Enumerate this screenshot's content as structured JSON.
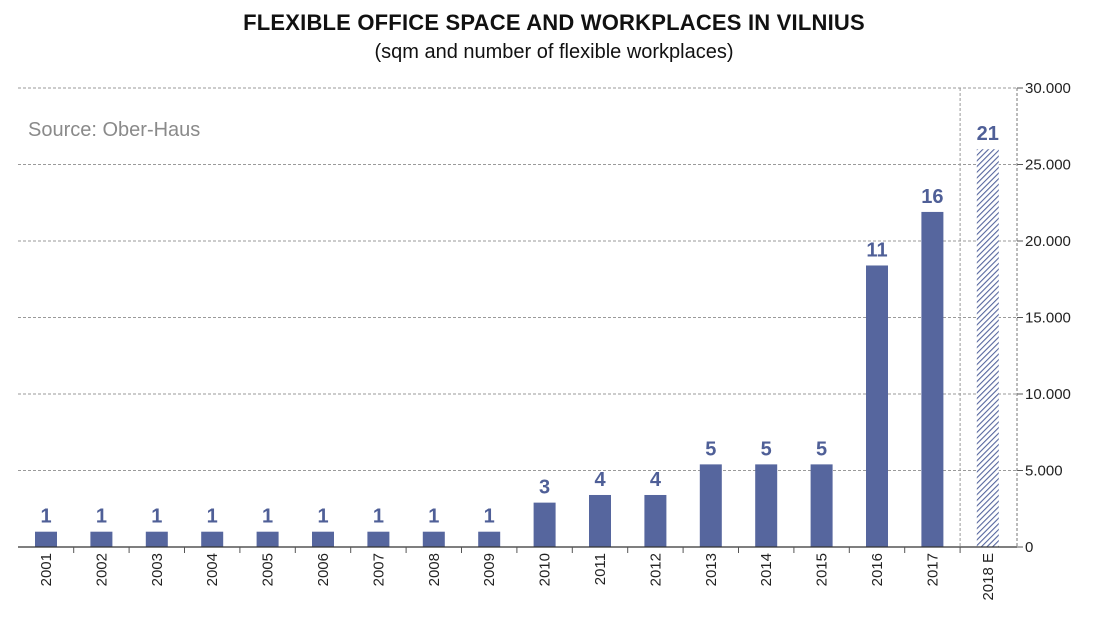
{
  "chart_data": {
    "type": "bar",
    "title": "FLEXIBLE OFFICE SPACE AND WORKPLACES IN VILNIUS",
    "subtitle": "(sqm and number of flexible workplaces)",
    "source": "Source: Ober-Haus",
    "categories": [
      "2001",
      "2002",
      "2003",
      "2004",
      "2005",
      "2006",
      "2007",
      "2008",
      "2009",
      "2010",
      "2011",
      "2012",
      "2013",
      "2014",
      "2015",
      "2016",
      "2017",
      "2018 E"
    ],
    "series": [
      {
        "values": [
          1000,
          1000,
          1000,
          1000,
          1000,
          1000,
          1000,
          1000,
          1000,
          2900,
          3400,
          3400,
          5400,
          5400,
          5400,
          18400,
          21900,
          26000
        ]
      }
    ],
    "data_labels": [
      "1",
      "1",
      "1",
      "1",
      "1",
      "1",
      "1",
      "1",
      "1",
      "3",
      "4",
      "4",
      "5",
      "5",
      "5",
      "11",
      "16",
      "21"
    ],
    "estimate_categories": [
      "2018 E"
    ],
    "y_ticks": [
      "0",
      "5.000",
      "10.000",
      "15.000",
      "20.000",
      "25.000",
      "30.000"
    ],
    "ylim": [
      0,
      30000
    ],
    "y_axis_side": "right",
    "grid": true,
    "colors": {
      "bar": "#56669e",
      "label": "#4f5f97",
      "grid": "#9a9a9a",
      "hatch": "#56669e"
    }
  }
}
